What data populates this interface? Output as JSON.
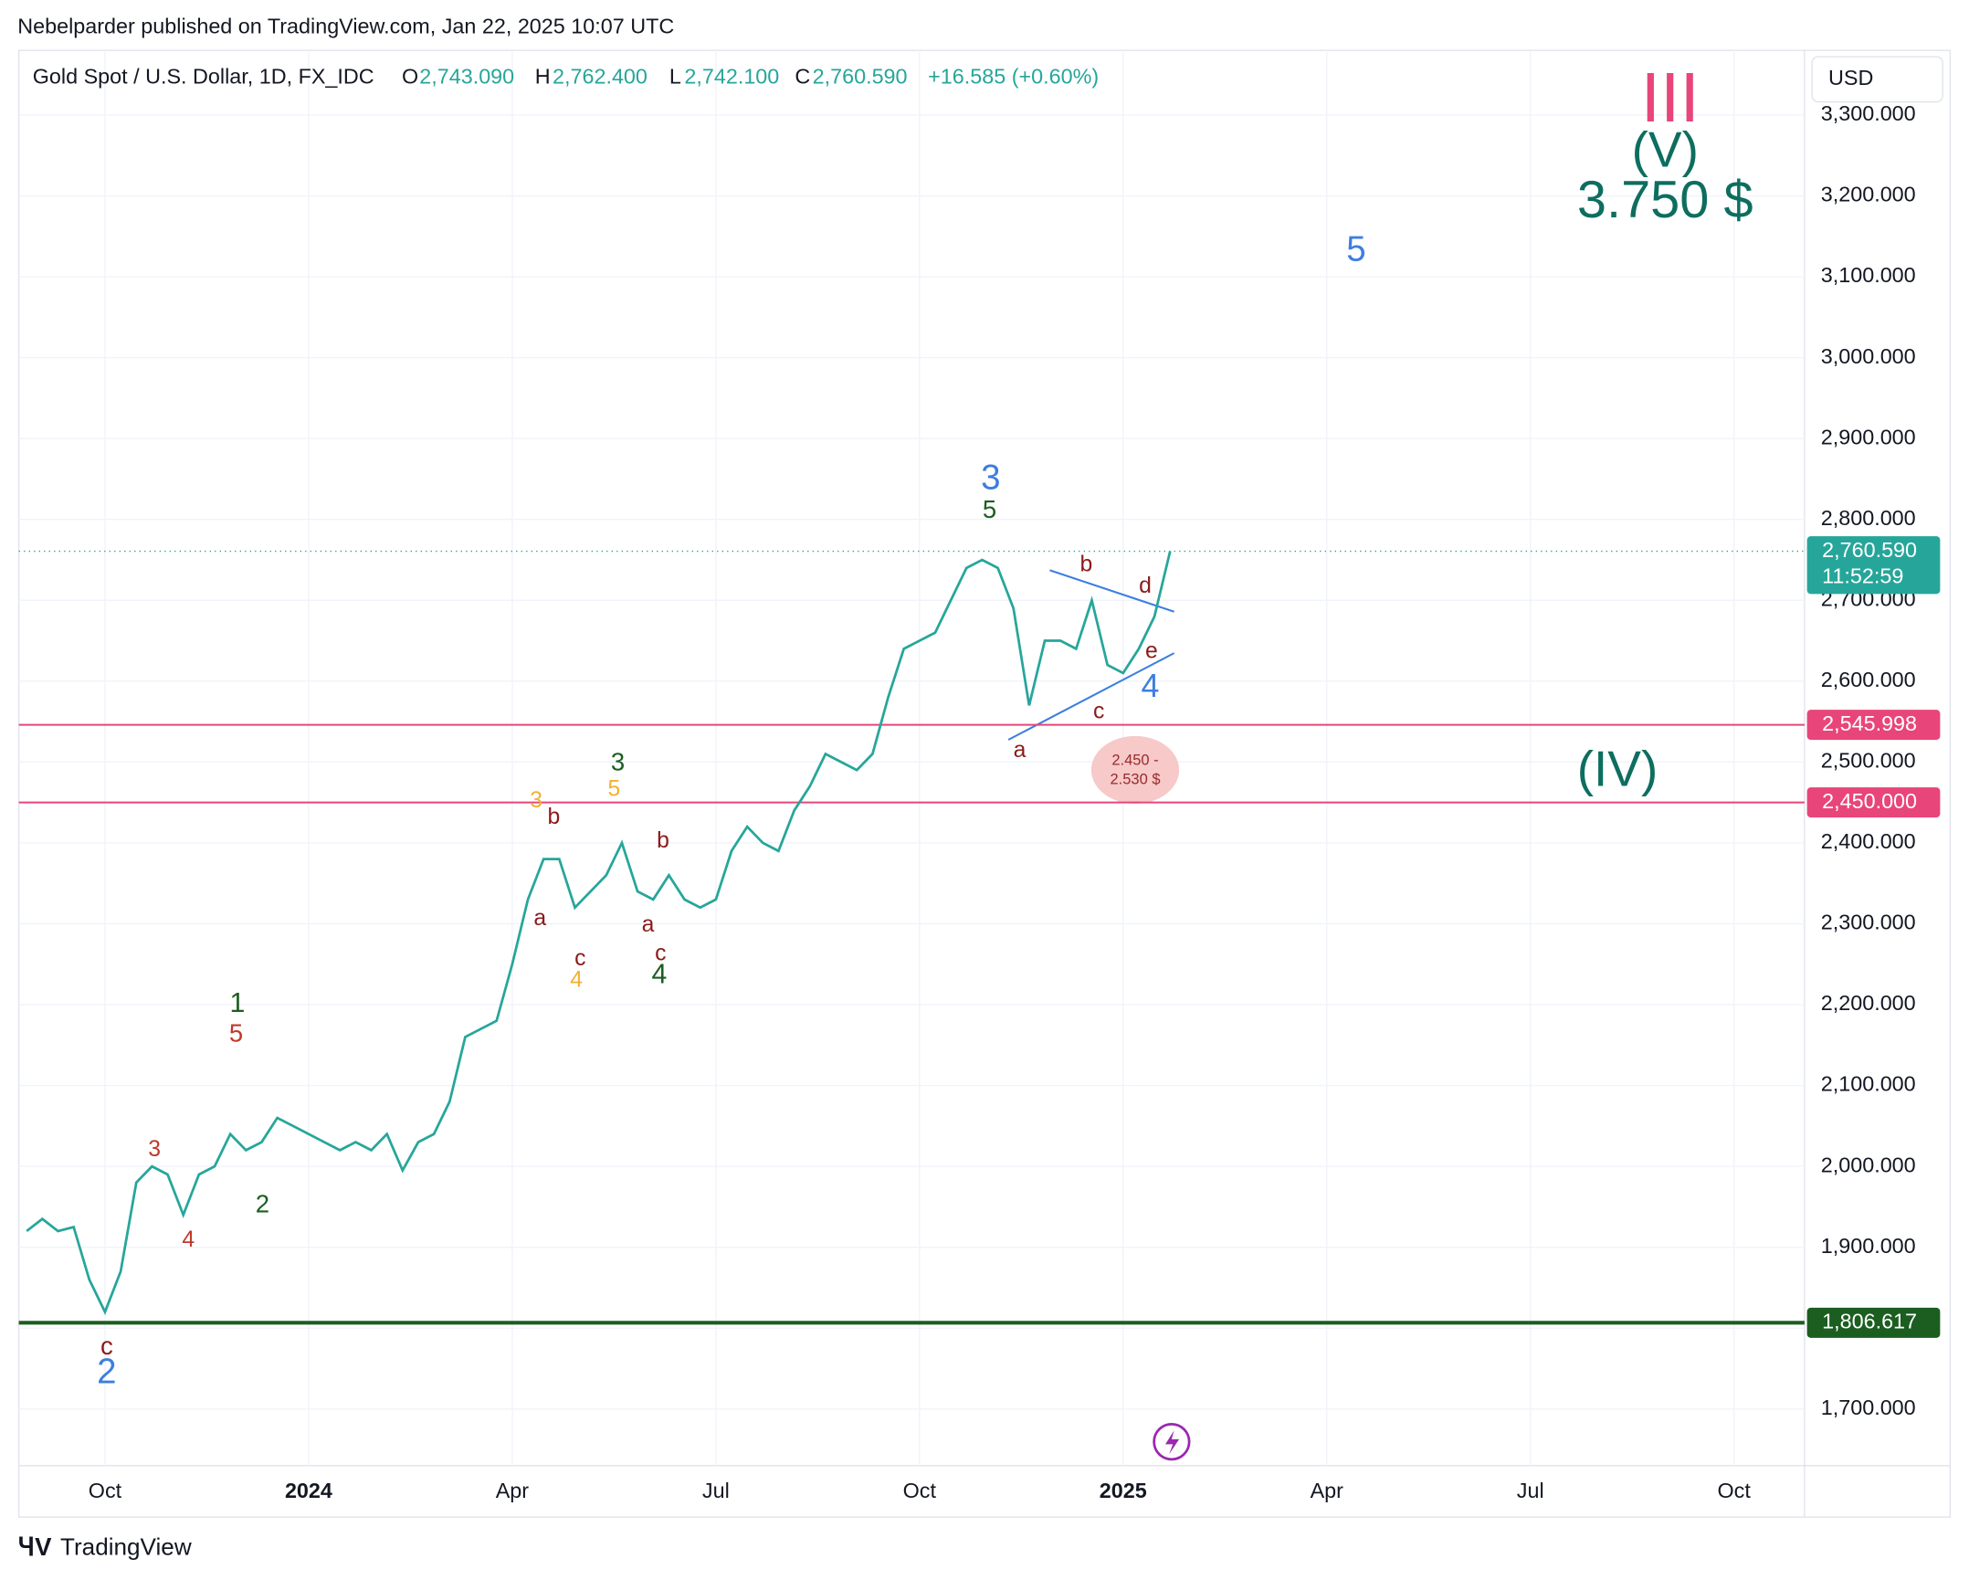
{
  "header": {
    "publisher": "Nebelparder published on TradingView.com, Jan 22, 2025 10:07 UTC",
    "symbol": "Gold Spot / U.S. Dollar, 1D, FX_IDC",
    "o_key": "O",
    "o": "2,743.090",
    "h_key": "H",
    "h": "2,762.400",
    "l_key": "L",
    "l": "2,742.100",
    "c_key": "C",
    "c": "2,760.590",
    "change": "+16.585 (+0.60%)",
    "currency": "USD",
    "footer": "TradingView"
  },
  "chart_data": {
    "type": "line",
    "color": "#26a69a",
    "categories": [
      null,
      null,
      null,
      null,
      null,
      "Oct",
      null,
      null,
      null,
      null,
      null,
      null,
      null,
      null,
      null,
      null,
      null,
      null,
      "2024",
      null,
      null,
      null,
      null,
      null,
      null,
      null,
      null,
      null,
      null,
      null,
      null,
      "Apr",
      null,
      null,
      null,
      null,
      null,
      null,
      null,
      null,
      null,
      null,
      null,
      null,
      "Jul",
      null,
      null,
      null,
      null,
      null,
      null,
      null,
      null,
      null,
      null,
      null,
      null,
      "Oct",
      null,
      null,
      null,
      null,
      null,
      null,
      null,
      null,
      null,
      null,
      null,
      null,
      "2025",
      null,
      null,
      null,
      null,
      null,
      null,
      null,
      null,
      null,
      null,
      null,
      null,
      "Apr",
      null,
      null,
      null,
      null,
      null,
      null,
      null,
      null,
      null,
      null,
      null,
      null,
      "Jul",
      null,
      null,
      null,
      null,
      null,
      null,
      null,
      null,
      null,
      null,
      null,
      null,
      "Oct",
      null,
      null,
      null,
      null
    ],
    "values": [
      1920,
      1935,
      1920,
      1925,
      1860,
      1820,
      1870,
      1980,
      2000,
      1990,
      1940,
      1990,
      2000,
      2040,
      2020,
      2030,
      2060,
      2050,
      2040,
      2030,
      2020,
      2030,
      2020,
      2040,
      1995,
      2030,
      2040,
      2080,
      2160,
      2170,
      2180,
      2250,
      2330,
      2380,
      2380,
      2320,
      2340,
      2360,
      2400,
      2340,
      2330,
      2360,
      2330,
      2320,
      2330,
      2390,
      2420,
      2400,
      2390,
      2440,
      2470,
      2510,
      2500,
      2490,
      2510,
      2580,
      2640,
      2650,
      2660,
      2700,
      2740,
      2750,
      2740,
      2690,
      2570,
      2650,
      2650,
      2640,
      2700,
      2620,
      2610,
      2640,
      2680,
      2760.59,
      null,
      null,
      null,
      null,
      null,
      null,
      null,
      null,
      null,
      null,
      null,
      null,
      null,
      null,
      null,
      null,
      null,
      null,
      null,
      null,
      null,
      null,
      null,
      null,
      null,
      null,
      null,
      null,
      null,
      null,
      null,
      null,
      null,
      null,
      null,
      null,
      null,
      null,
      null,
      null
    ],
    "ylim": [
      1630,
      3380
    ],
    "yticks": [
      {
        "value": 1700,
        "label": "1,700.000"
      },
      {
        "value": 1800,
        "label": "1,800.000"
      },
      {
        "value": 1900,
        "label": "1,900.000"
      },
      {
        "value": 2000,
        "label": "2,000.000"
      },
      {
        "value": 2100,
        "label": "2,100.000"
      },
      {
        "value": 2200,
        "label": "2,200.000"
      },
      {
        "value": 2300,
        "label": "2,300.000"
      },
      {
        "value": 2400,
        "label": "2,400.000"
      },
      {
        "value": 2500,
        "label": "2,500.000"
      },
      {
        "value": 2600,
        "label": "2,600.000"
      },
      {
        "value": 2700,
        "label": "2,700.000"
      },
      {
        "value": 2800,
        "label": "2,800.000"
      },
      {
        "value": 2900,
        "label": "2,900.000"
      },
      {
        "value": 3000,
        "label": "3,000.000"
      },
      {
        "value": 3100,
        "label": "3,100.000"
      },
      {
        "value": 3200,
        "label": "3,200.000"
      },
      {
        "value": 3300,
        "label": "3,300.000"
      }
    ],
    "grid": true,
    "hlines": [
      {
        "value": 2545.998,
        "label": "2,545.998",
        "color": "#e8457a"
      },
      {
        "value": 2450,
        "label": "2,450.000",
        "color": "#e8457a"
      },
      {
        "value": 1806.617,
        "label": "1,806.617",
        "color": "#1b5e20"
      }
    ],
    "last_price": {
      "value": 2760.59,
      "label": "2,760.590",
      "countdown": "11:52:59"
    },
    "annotations": [
      "III",
      "(V)",
      "3.750 $",
      "5",
      "3",
      "5",
      "b",
      "d",
      "e",
      "4",
      "c",
      "a",
      "(IV)",
      "3",
      "5",
      "3",
      "b",
      "b",
      "a",
      "a",
      "c",
      "c",
      "4",
      "4",
      "1",
      "5",
      "3",
      "4",
      "2",
      "c",
      "2"
    ],
    "target_zone": [
      "2.450 -",
      "2.530 $"
    ]
  }
}
